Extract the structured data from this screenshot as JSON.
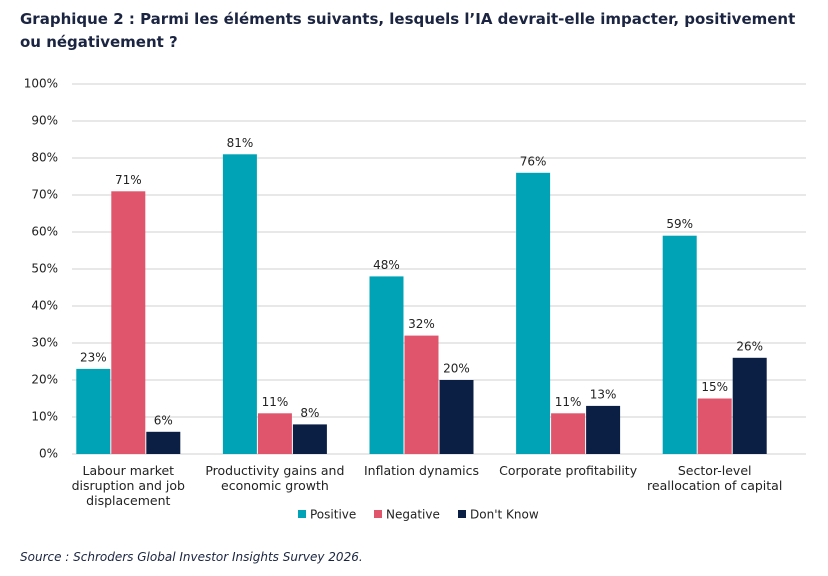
{
  "chart_data": {
    "type": "bar",
    "title": "Graphique 2 : Parmi les éléments suivants, lesquels l’IA devrait-elle impacter, positivement ou négativement ?",
    "source": "Source : Schroders Global Investor Insights Survey 2026.",
    "categories": [
      "Labour market disruption and job displacement",
      "Productivity gains and economic growth",
      "Inflation dynamics",
      "Corporate profitability",
      "Sector-level reallocation of capital"
    ],
    "series": [
      {
        "name": "Positive",
        "color": "#00a3b5",
        "values": [
          23,
          81,
          48,
          76,
          59
        ],
        "value_labels": [
          "23%",
          "81%",
          "48%",
          "76%",
          "59%"
        ]
      },
      {
        "name": "Negative",
        "color": "#e0546c",
        "values": [
          71,
          11,
          32,
          11,
          15
        ],
        "value_labels": [
          "71%",
          "11%",
          "32%",
          "11%",
          "15%"
        ]
      },
      {
        "name": "Don't Know",
        "color": "#0b1f45",
        "values": [
          6,
          8,
          20,
          13,
          26
        ],
        "value_labels": [
          "6%",
          "8%",
          "20%",
          "13%",
          "26%"
        ]
      }
    ],
    "ylim": [
      0,
      100
    ],
    "yticks": [
      {
        "value": 0,
        "label": "0%"
      },
      {
        "value": 10,
        "label": "10%"
      },
      {
        "value": 20,
        "label": "20%"
      },
      {
        "value": 30,
        "label": "30%"
      },
      {
        "value": 40,
        "label": "40%"
      },
      {
        "value": 50,
        "label": "50%"
      },
      {
        "value": 60,
        "label": "60%"
      },
      {
        "value": 70,
        "label": "70%"
      },
      {
        "value": 80,
        "label": "80%"
      },
      {
        "value": 90,
        "label": "90%"
      },
      {
        "value": 100,
        "label": "100%"
      }
    ],
    "grid": true
  }
}
